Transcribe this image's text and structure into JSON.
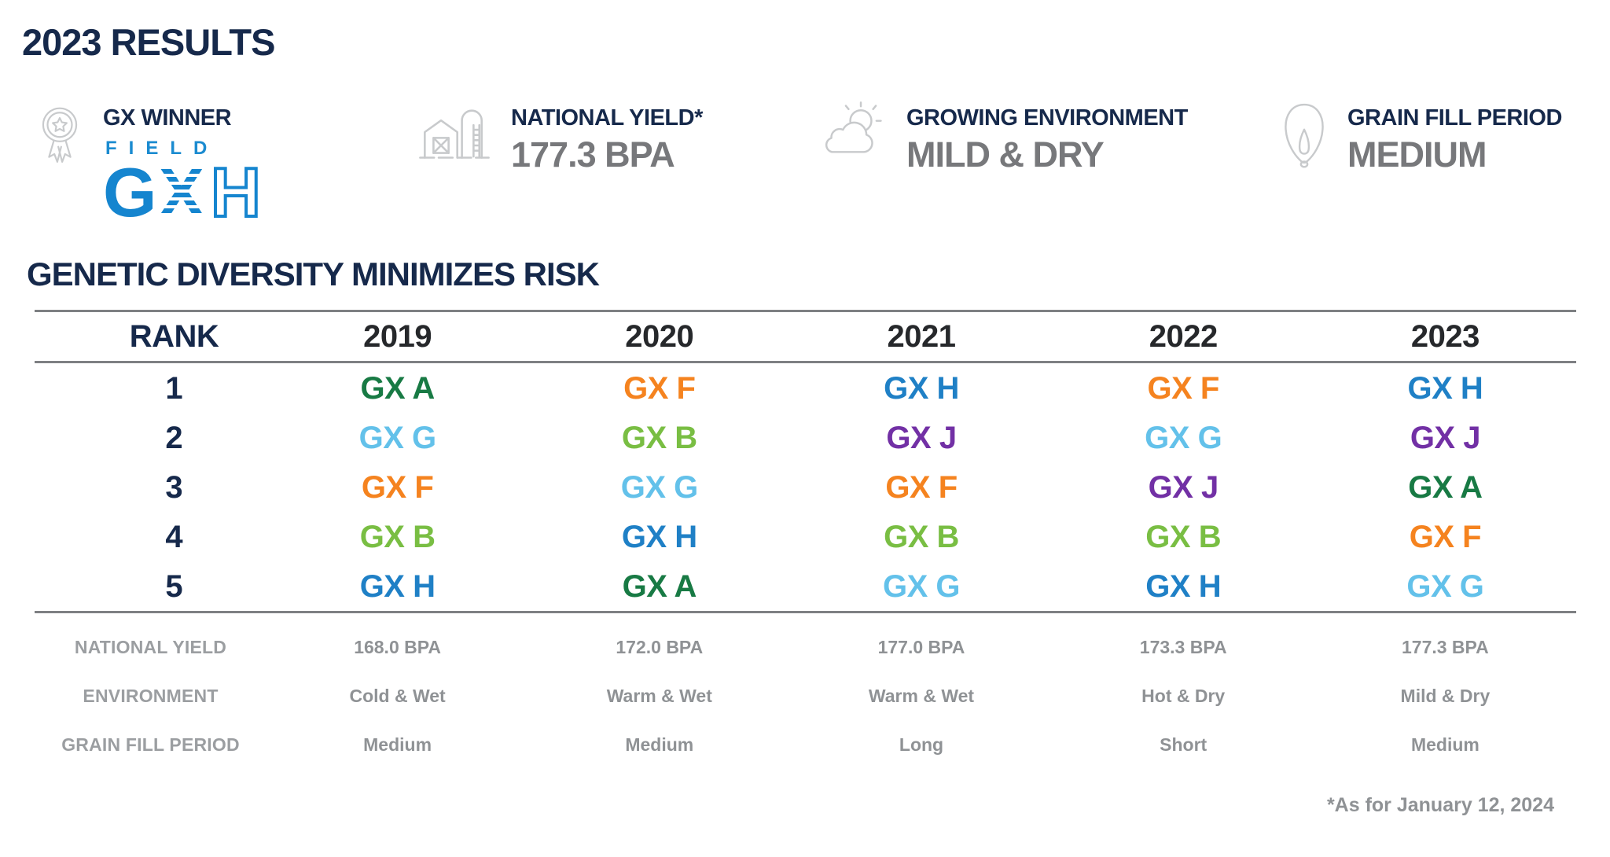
{
  "page": {
    "title": "2023 RESULTS",
    "footnote": "*As for January 12, 2024"
  },
  "stats": [
    {
      "icon": "award-ribbon-icon",
      "label": "GX WINNER",
      "logo": {
        "field": "FIELD",
        "g": "G",
        "x": "X",
        "h": "H"
      }
    },
    {
      "icon": "barn-icon",
      "label": "NATIONAL YIELD*",
      "value": "177.3 BPA"
    },
    {
      "icon": "cloud-sun-icon",
      "label": "GROWING ENVIRONMENT",
      "value": "MILD & DRY"
    },
    {
      "icon": "corn-kernel-icon",
      "label": "GRAIN FILL PERIOD",
      "value": "MEDIUM"
    }
  ],
  "table": {
    "title": "GENETIC DIVERSITY MINIMIZES RISK",
    "columns": [
      "RANK",
      "2019",
      "2020",
      "2021",
      "2022",
      "2023"
    ],
    "rank_rows": [
      {
        "rank": "1",
        "cells": [
          "GX A",
          "GX F",
          "GX H",
          "GX F",
          "GX H"
        ]
      },
      {
        "rank": "2",
        "cells": [
          "GX G",
          "GX B",
          "GX J",
          "GX G",
          "GX J"
        ]
      },
      {
        "rank": "3",
        "cells": [
          "GX F",
          "GX G",
          "GX F",
          "GX J",
          "GX A"
        ]
      },
      {
        "rank": "4",
        "cells": [
          "GX B",
          "GX H",
          "GX B",
          "GX B",
          "GX F"
        ]
      },
      {
        "rank": "5",
        "cells": [
          "GX H",
          "GX A",
          "GX G",
          "GX H",
          "GX G"
        ]
      }
    ],
    "info_rows": [
      {
        "label": "NATIONAL YIELD",
        "values": [
          "168.0 BPA",
          "172.0 BPA",
          "177.0 BPA",
          "173.3 BPA",
          "177.3 BPA"
        ]
      },
      {
        "label": "ENVIRONMENT",
        "values": [
          "Cold & Wet",
          "Warm & Wet",
          "Warm & Wet",
          "Hot & Dry",
          "Mild & Dry"
        ]
      },
      {
        "label": "GRAIN FILL PERIOD",
        "values": [
          "Medium",
          "Medium",
          "Long",
          "Short",
          "Medium"
        ]
      }
    ]
  },
  "colors": {
    "navy": "#16294b",
    "year_header": "#26282b",
    "stat_value_gray": "#77787b",
    "info_gray": "#8f9295",
    "rule_gray": "#7e8083",
    "icon_gray": "#c8cacc",
    "logo_blue": "#1585cf",
    "hybrids": {
      "GX A": "#187a44",
      "GX B": "#79be43",
      "GX F": "#f5831f",
      "GX G": "#63c1ea",
      "GX H": "#1f80c6",
      "GX J": "#7230a5"
    }
  }
}
